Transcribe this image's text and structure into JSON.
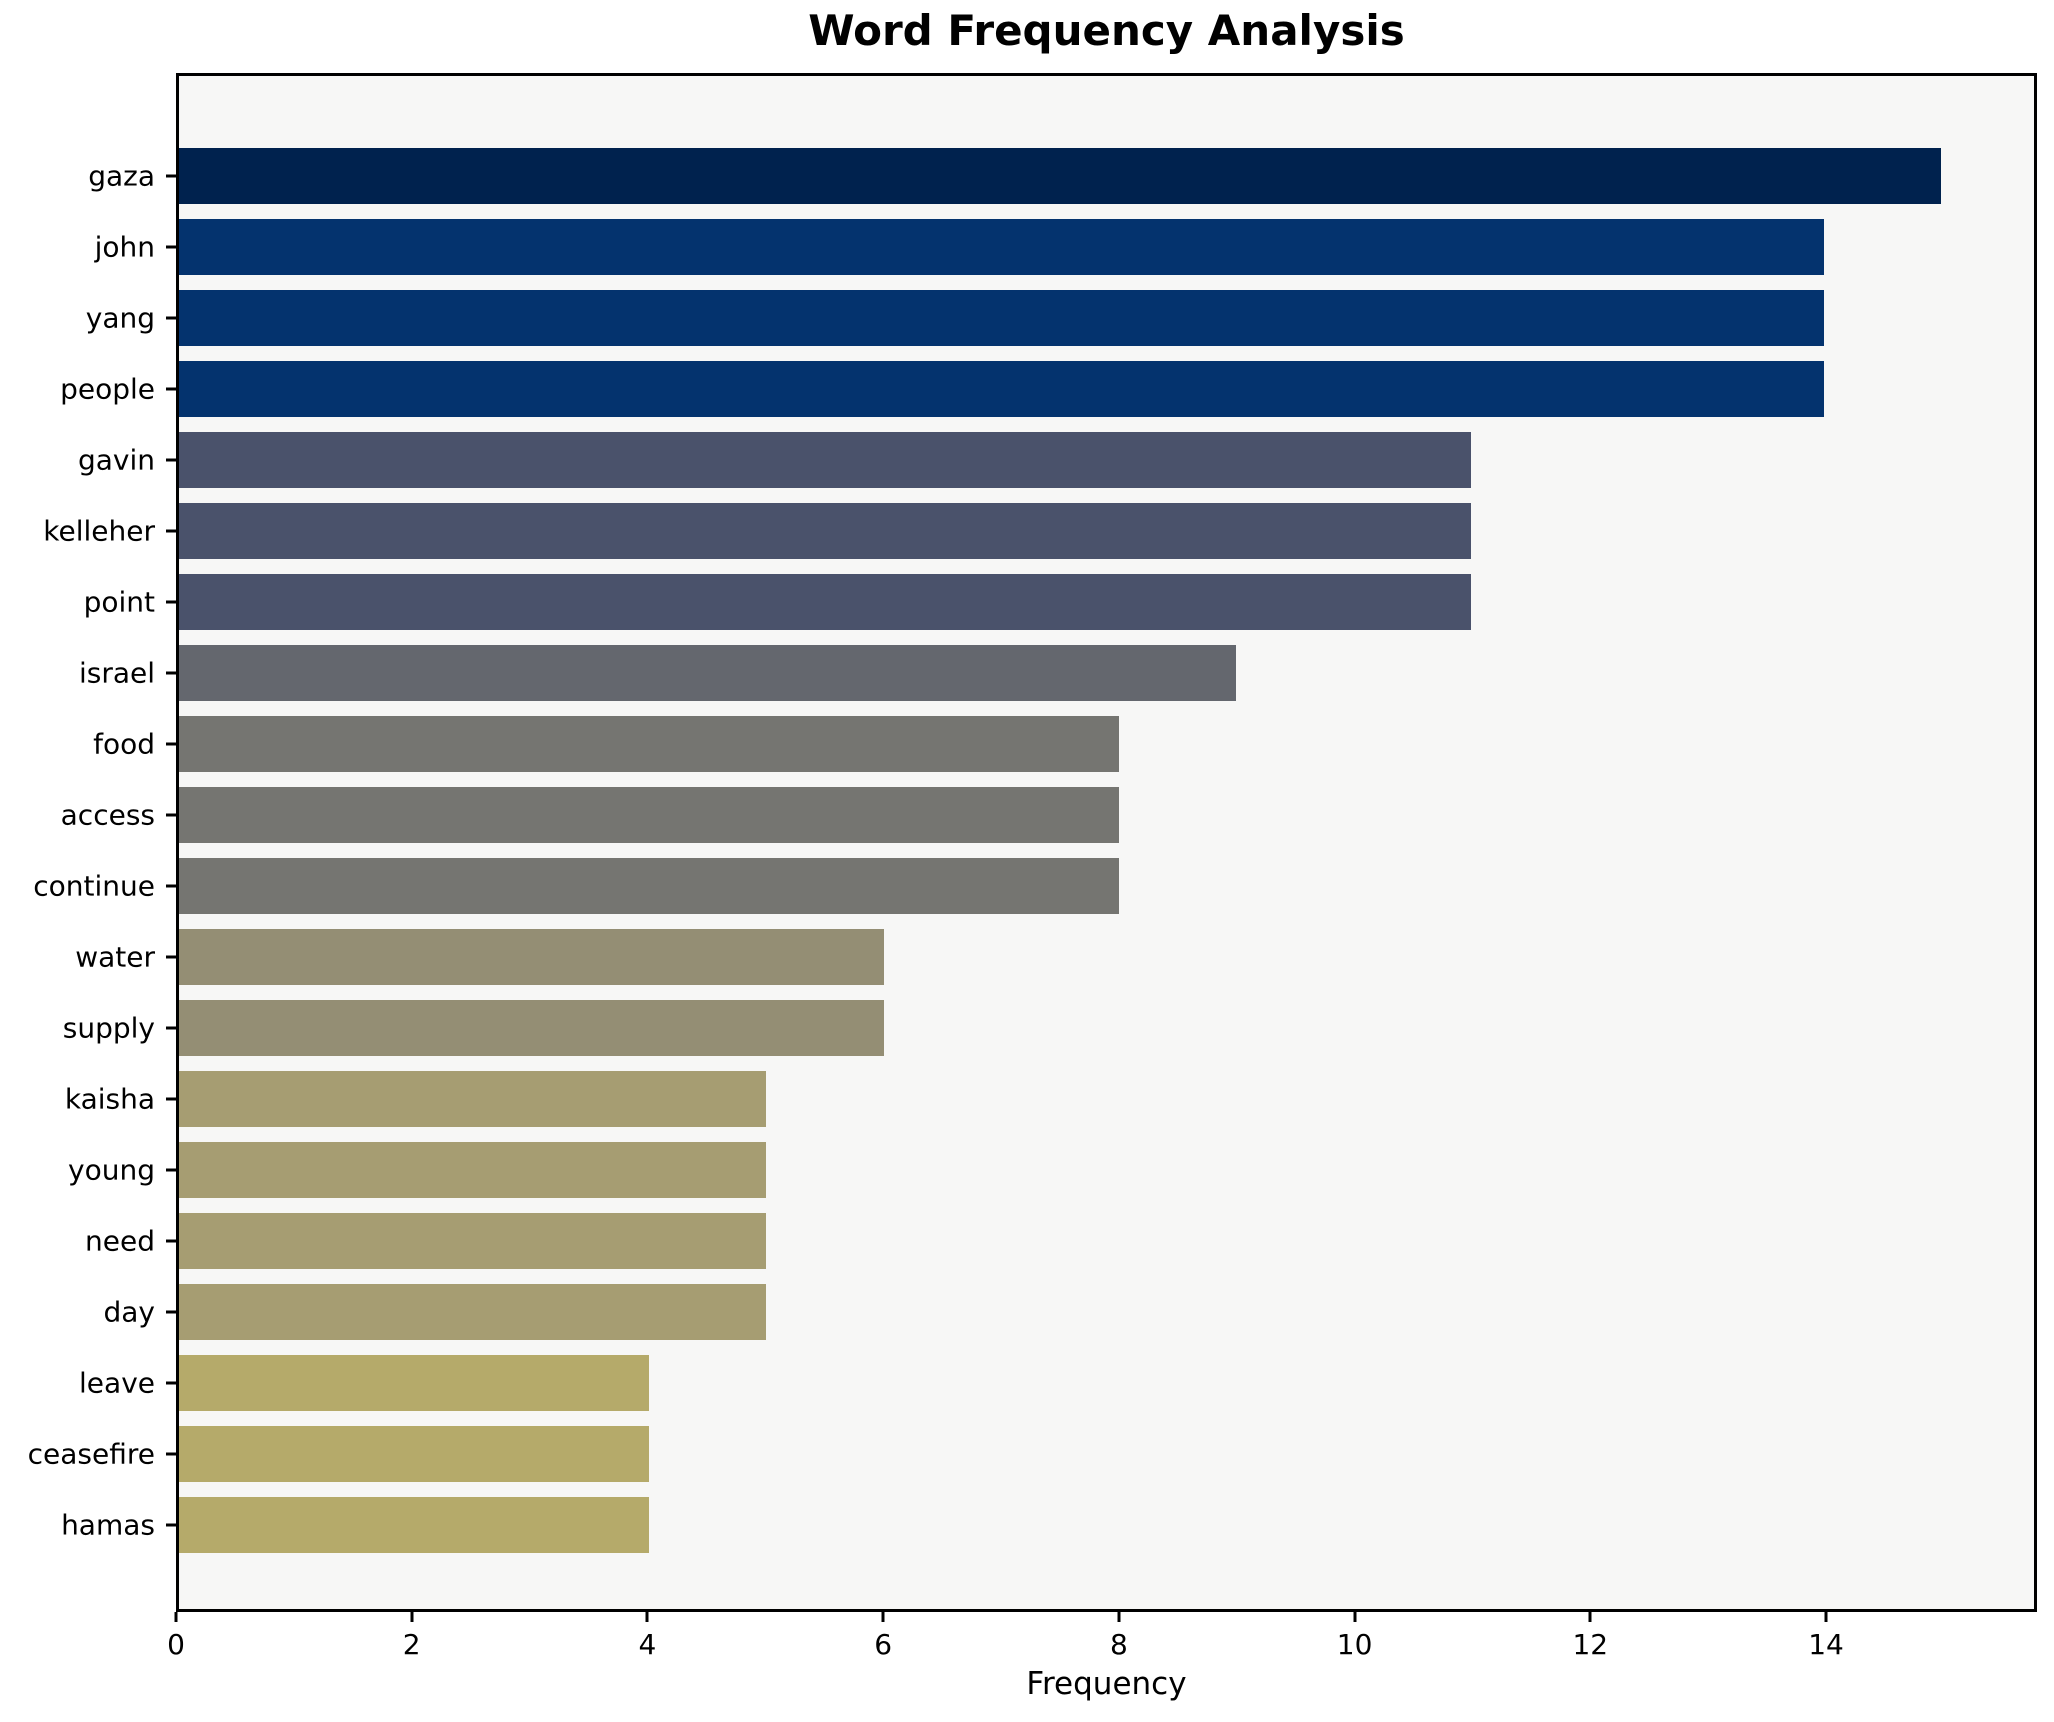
{
  "figure": {
    "background": "#ffffff",
    "plot_background": "#f7f7f6",
    "spine_color": "#000000"
  },
  "chart_data": {
    "type": "bar",
    "orientation": "horizontal",
    "title": "Word Frequency Analysis",
    "xlabel": "Frequency",
    "ylabel": "",
    "grid": false,
    "legend": false,
    "xlim": [
      0,
      15.79
    ],
    "xticks": [
      0,
      2,
      4,
      6,
      8,
      10,
      12,
      14
    ],
    "categories": [
      "gaza",
      "john",
      "yang",
      "people",
      "gavin",
      "kelleher",
      "point",
      "israel",
      "food",
      "access",
      "continue",
      "water",
      "supply",
      "kaisha",
      "young",
      "need",
      "day",
      "leave",
      "ceasefire",
      "hamas"
    ],
    "values": [
      15,
      14,
      14,
      14,
      11,
      11,
      11,
      9,
      8,
      8,
      8,
      6,
      6,
      5,
      5,
      5,
      5,
      4,
      4,
      4
    ],
    "bar_colors": [
      "#00224e",
      "#04336e",
      "#04336e",
      "#04336e",
      "#4a526b",
      "#4a526b",
      "#4a526b",
      "#64676e",
      "#757571",
      "#757571",
      "#757571",
      "#948e74",
      "#948e74",
      "#a69d72",
      "#a69d72",
      "#a69d72",
      "#a69d72",
      "#b5aa6a",
      "#b5aa6a",
      "#b5aa6a"
    ]
  }
}
